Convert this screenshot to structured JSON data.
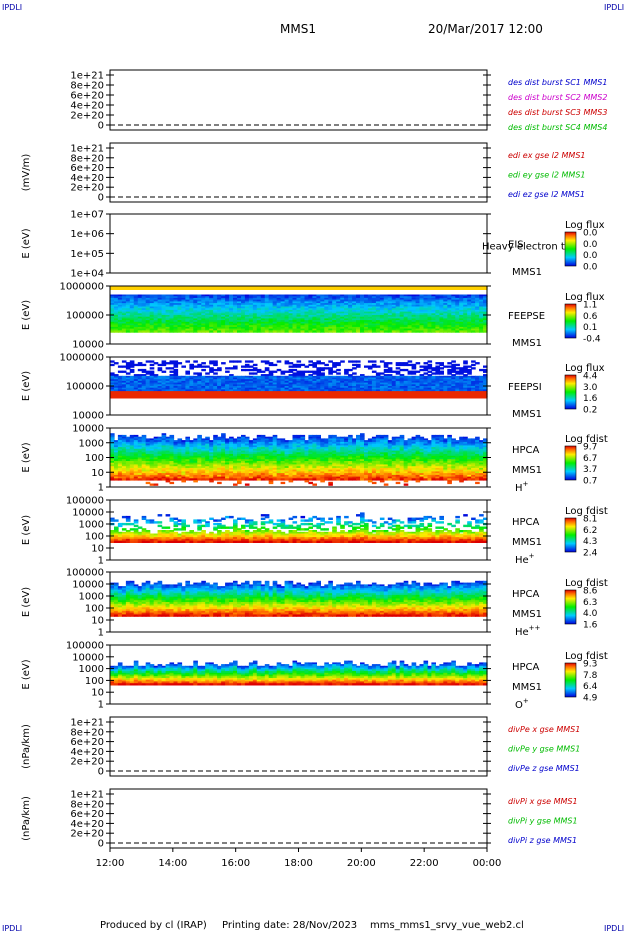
{
  "corner_marks": [
    "IPDLI",
    "IPDLI",
    "IPDLI",
    "IPDLI"
  ],
  "header": {
    "mission": "MMS1",
    "datetime": "20/Mar/2017 12:00"
  },
  "footer": {
    "produced_by": "Produced by cl (IRAP)",
    "printing_date": "Printing date: 28/Nov/2023",
    "file_name": "mms_mms1_srvy_vue_web2.cl"
  },
  "chart_data": [
    {
      "type": "line",
      "ylabel": "",
      "ylim": [
        0,
        1e+21
      ],
      "yticks": [
        "1e+21",
        "8e+20",
        "6e+20",
        "4e+20",
        "2e+20",
        "0"
      ],
      "series": [
        {
          "name": "des dist burst SC1 MMS1",
          "color": "#0000cc"
        },
        {
          "name": "des dist burst SC2 MMS2",
          "color": "#cc00cc"
        },
        {
          "name": "des dist burst SC3 MMS3",
          "color": "#cc0000"
        },
        {
          "name": "des dist burst SC4 MMS4",
          "color": "#00bb00"
        }
      ]
    },
    {
      "type": "line",
      "ylabel": "(mV/m)",
      "ylim": [
        0,
        1e+21
      ],
      "yticks": [
        "1e+21",
        "8e+20",
        "6e+20",
        "4e+20",
        "2e+20",
        "0"
      ],
      "series": [
        {
          "name": "edi ex gse l2 MMS1",
          "color": "#cc0000"
        },
        {
          "name": "edi ey gse l2 MMS1",
          "color": "#00bb00"
        },
        {
          "name": "edi ez gse l2 MMS1",
          "color": "#0000cc"
        }
      ]
    },
    {
      "type": "heatmap",
      "ylabel": "E (eV)",
      "ylim": [
        10000,
        10000000
      ],
      "ylog": true,
      "yticks": [
        "1e+07",
        "1e+06",
        "1e+05",
        "1e+04"
      ],
      "instrument": [
        "EIS",
        "MMS1"
      ],
      "overlay_text": "Heavy electron tof",
      "colorbar": {
        "title": "Log flux",
        "ticks": [
          "0.0",
          "0.0",
          "0.0",
          "0.0"
        ]
      },
      "has_data": false
    },
    {
      "type": "heatmap",
      "ylabel": "E (eV)",
      "ylim": [
        10000,
        1000000
      ],
      "ylog": true,
      "yticks": [
        "1000000",
        "100000",
        "10000"
      ],
      "instrument": [
        "FEEPSE",
        "MMS1"
      ],
      "colorbar": {
        "title": "Log flux",
        "ticks": [
          "1.1",
          "0.6",
          "0.1",
          "-0.4"
        ]
      },
      "has_data": true
    },
    {
      "type": "heatmap",
      "ylabel": "E (eV)",
      "ylim": [
        10000,
        1000000
      ],
      "ylog": true,
      "yticks": [
        "1000000",
        "100000",
        "10000"
      ],
      "instrument": [
        "FEEPSI",
        "MMS1"
      ],
      "colorbar": {
        "title": "Log flux",
        "ticks": [
          "4.4",
          "3.0",
          "1.6",
          "0.2"
        ]
      },
      "has_data": true
    },
    {
      "type": "heatmap",
      "ylabel": "E (eV)",
      "ylim": [
        1,
        10000
      ],
      "ylog": true,
      "yticks": [
        "10000",
        "1000",
        "100",
        "10",
        "1"
      ],
      "instrument": [
        "HPCA",
        "MMS1"
      ],
      "species": "H",
      "species_charge": "+",
      "colorbar": {
        "title": "Log fdist",
        "ticks": [
          "9.7",
          "6.7",
          "3.7",
          "0.7"
        ]
      },
      "has_data": true
    },
    {
      "type": "heatmap",
      "ylabel": "E (eV)",
      "ylim": [
        1,
        100000
      ],
      "ylog": true,
      "yticks": [
        "100000",
        "10000",
        "1000",
        "100",
        "10",
        "1"
      ],
      "instrument": [
        "HPCA",
        "MMS1"
      ],
      "species": "He",
      "species_charge": "+",
      "colorbar": {
        "title": "Log fdist",
        "ticks": [
          "8.1",
          "6.2",
          "4.3",
          "2.4"
        ]
      },
      "has_data": true
    },
    {
      "type": "heatmap",
      "ylabel": "E (eV)",
      "ylim": [
        1,
        100000
      ],
      "ylog": true,
      "yticks": [
        "100000",
        "10000",
        "1000",
        "100",
        "10",
        "1"
      ],
      "instrument": [
        "HPCA",
        "MMS1"
      ],
      "species": "He",
      "species_charge": "++",
      "colorbar": {
        "title": "Log fdist",
        "ticks": [
          "8.6",
          "6.3",
          "4.0",
          "1.6"
        ]
      },
      "has_data": true
    },
    {
      "type": "heatmap",
      "ylabel": "E (eV)",
      "ylim": [
        1,
        100000
      ],
      "ylog": true,
      "yticks": [
        "100000",
        "10000",
        "1000",
        "100",
        "10",
        "1"
      ],
      "instrument": [
        "HPCA",
        "MMS1"
      ],
      "species": "O",
      "species_charge": "+",
      "colorbar": {
        "title": "Log fdist",
        "ticks": [
          "9.3",
          "7.8",
          "6.4",
          "4.9"
        ]
      },
      "has_data": true
    },
    {
      "type": "line",
      "ylabel": "(nPa/km)",
      "ylim": [
        0,
        1e+21
      ],
      "yticks": [
        "1e+21",
        "8e+20",
        "6e+20",
        "4e+20",
        "2e+20",
        "0"
      ],
      "series": [
        {
          "name": "divPe x gse MMS1",
          "color": "#cc0000"
        },
        {
          "name": "divPe y gse MMS1",
          "color": "#00bb00"
        },
        {
          "name": "divPe z gse MMS1",
          "color": "#0000cc"
        }
      ]
    },
    {
      "type": "line",
      "ylabel": "(nPa/km)",
      "ylim": [
        0,
        1e+21
      ],
      "yticks": [
        "1e+21",
        "8e+20",
        "6e+20",
        "4e+20",
        "2e+20",
        "0"
      ],
      "series": [
        {
          "name": "divPi x gse MMS1",
          "color": "#cc0000"
        },
        {
          "name": "divPi y gse MMS1",
          "color": "#00bb00"
        },
        {
          "name": "divPi z gse MMS1",
          "color": "#0000cc"
        }
      ]
    }
  ],
  "time_axis": {
    "ticks": [
      "12:00",
      "14:00",
      "16:00",
      "18:00",
      "20:00",
      "22:00",
      "00:00"
    ]
  }
}
